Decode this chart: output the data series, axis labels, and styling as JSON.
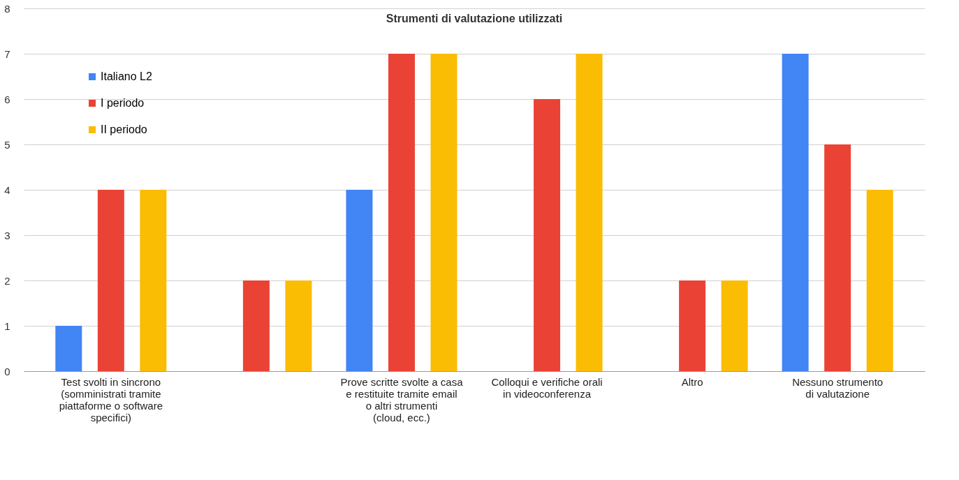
{
  "chart_data": {
    "type": "bar",
    "title": "Strumenti di valutazione utilizzati",
    "categories": [
      "Test svolti in sincrono\n(somministrati tramite\npiattaforme o software\nspecifici)",
      null,
      "Prove scritte svolte a casa\ne restituite tramite email\no altri strumenti\n(cloud, ecc.)",
      "Colloqui e verifiche orali\nin videoconferenza",
      "Altro",
      "Nessuno strumento\ndi valutazione"
    ],
    "series": [
      {
        "name": "Italiano L2",
        "color": "#4285f4",
        "values": [
          1,
          0,
          4,
          0,
          0,
          7
        ]
      },
      {
        "name": "I periodo",
        "color": "#ea4335",
        "values": [
          4,
          2,
          7,
          6,
          2,
          5
        ]
      },
      {
        "name": "II periodo",
        "color": "#fbbc04",
        "values": [
          4,
          2,
          7,
          7,
          2,
          4
        ]
      }
    ],
    "ylim": [
      0,
      8
    ],
    "yticks": [
      0,
      1,
      2,
      3,
      4,
      5,
      6,
      7,
      8
    ],
    "grid": "y",
    "legend": "top left"
  }
}
